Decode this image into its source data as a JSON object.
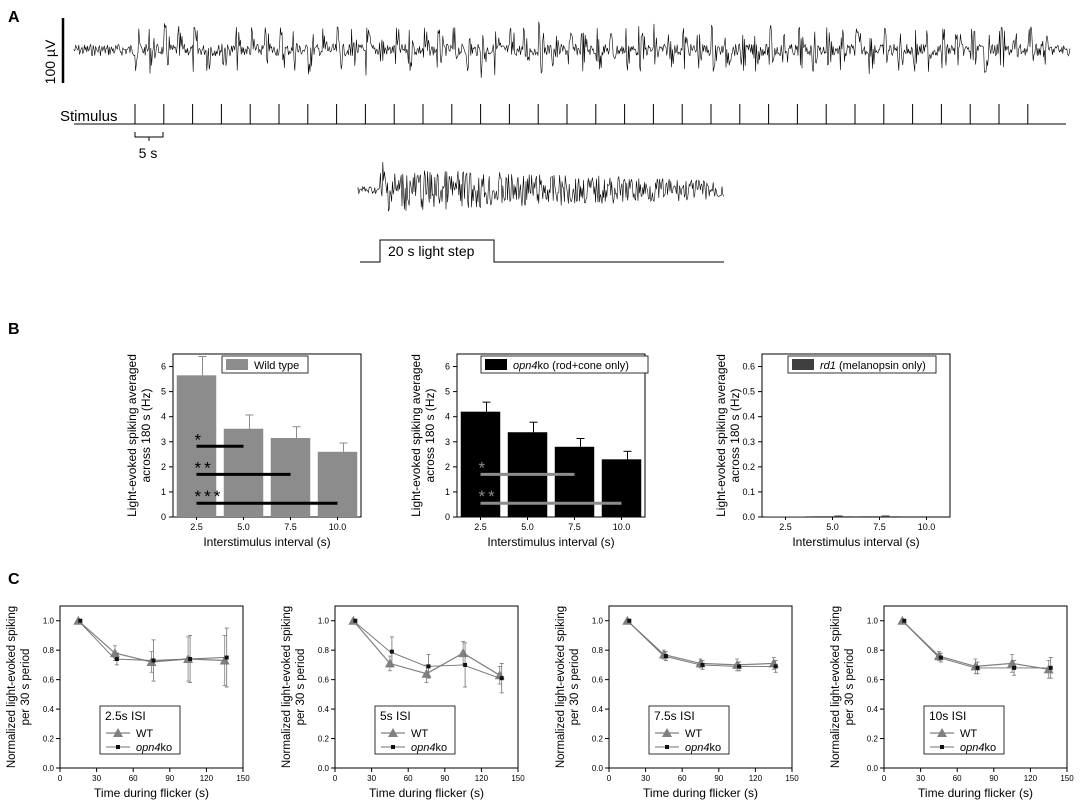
{
  "panels": {
    "a": {
      "label": "A",
      "scale_bar": "100 µV",
      "stimulus_label": "Stimulus",
      "time_scale": "5 s",
      "step_label": "20 s light step"
    },
    "b": {
      "label": "B"
    },
    "c": {
      "label": "C"
    }
  },
  "colors": {
    "wild_type": "#8c8c8c",
    "opn4ko": "#000000",
    "rd1": "#3f3f3f",
    "sig_gray": "#8c8c8c",
    "wt_line": "#808080",
    "ko_line": "#707070"
  },
  "chart_data": [
    {
      "type": "bar",
      "categories": [
        "2.5",
        "5.0",
        "7.5",
        "10.0"
      ],
      "values": [
        5.65,
        3.52,
        3.15,
        2.6
      ],
      "errors": [
        0.75,
        0.55,
        0.45,
        0.35
      ],
      "legend": "Wild type",
      "xlabel": "Interstimulus interval (s)",
      "ylabel": [
        "Light-evoked spiking averaged",
        "across 180 s (Hz)"
      ],
      "ylim": [
        0,
        6.5
      ],
      "yticks": [
        "0",
        "1",
        "2",
        "3",
        "4",
        "5",
        "6"
      ],
      "legend_position": "top-right",
      "significance": [
        {
          "label": "*",
          "from": "2.5",
          "to": "5.0",
          "y": 2.82
        },
        {
          "label": "**",
          "from": "2.5",
          "to": "7.5",
          "y": 1.7
        },
        {
          "label": "***",
          "from": "2.5",
          "to": "10.0",
          "y": 0.55
        }
      ]
    },
    {
      "type": "bar",
      "categories": [
        "2.5",
        "5.0",
        "7.5",
        "10.0"
      ],
      "values": [
        4.2,
        3.38,
        2.8,
        2.3
      ],
      "errors": [
        0.38,
        0.4,
        0.33,
        0.32
      ],
      "legend": "opn4ko (rod+cone only)",
      "legend_italic": "opn4",
      "legend_rest": "ko (rod+cone only)",
      "xlabel": "Interstimulus interval (s)",
      "ylabel": [
        "Light-evoked spiking averaged",
        "across 180 s (Hz)"
      ],
      "ylim": [
        0,
        6.5
      ],
      "yticks": [
        "0",
        "1",
        "2",
        "3",
        "4",
        "5",
        "6"
      ],
      "legend_position": "top-right",
      "significance": [
        {
          "label": "*",
          "from": "2.5",
          "to": "7.5",
          "y": 1.7
        },
        {
          "label": "**",
          "from": "2.5",
          "to": "10.0",
          "y": 0.55
        }
      ]
    },
    {
      "type": "bar",
      "categories": [
        "2.5",
        "5.0",
        "7.5",
        "10.0"
      ],
      "values": [
        0.002,
        0.003,
        0.003,
        0.0
      ],
      "errors": [
        0.0,
        0.001,
        0.001,
        0.0
      ],
      "legend": "rd1 (melanopsin only)",
      "legend_italic": "rd1",
      "legend_rest": " (melanopsin only)",
      "xlabel": "Interstimulus interval (s)",
      "ylabel": [
        "Light-evoked spiking averaged",
        "across 180 s (Hz)"
      ],
      "ylim": [
        0,
        0.65
      ],
      "yticks": [
        "0.0",
        "0.1",
        "0.2",
        "0.3",
        "0.4",
        "0.5",
        "0.6"
      ],
      "legend_position": "top-right"
    },
    {
      "type": "line",
      "title": "2.5s ISI",
      "x": [
        15,
        45,
        75,
        105,
        135
      ],
      "series": [
        {
          "name": "WT",
          "values": [
            1.0,
            0.78,
            0.72,
            0.74,
            0.73
          ],
          "errors": [
            0,
            0.05,
            0.07,
            0.15,
            0.17
          ]
        },
        {
          "name": "opn4ko",
          "values": [
            1.0,
            0.74,
            0.73,
            0.74,
            0.75
          ],
          "errors": [
            0,
            0.04,
            0.14,
            0.16,
            0.2
          ]
        }
      ],
      "xlabel": "Time during flicker (s)",
      "ylabel": [
        "Normalized light-evoked spiking",
        "per 30 s period"
      ],
      "xlim": [
        0,
        150
      ],
      "ylim": [
        0,
        1.1
      ],
      "xticks": [
        "0",
        "30",
        "60",
        "90",
        "120",
        "150"
      ],
      "yticks": [
        "0.0",
        "0.2",
        "0.4",
        "0.6",
        "0.8",
        "1.0"
      ],
      "legend_position": "bottom-left"
    },
    {
      "type": "line",
      "title": "5s ISI",
      "x": [
        15,
        45,
        75,
        105,
        135
      ],
      "series": [
        {
          "name": "WT",
          "values": [
            1.0,
            0.71,
            0.64,
            0.78,
            0.63
          ],
          "errors": [
            0,
            0.05,
            0.06,
            0.08,
            0.06
          ]
        },
        {
          "name": "opn4ko",
          "values": [
            1.0,
            0.79,
            0.69,
            0.7,
            0.61
          ],
          "errors": [
            0,
            0.1,
            0.08,
            0.15,
            0.1
          ]
        }
      ],
      "xlabel": "Time during flicker (s)",
      "ylabel": [
        "Normalized light-evoked spiking",
        "per 30 s period"
      ],
      "xlim": [
        0,
        150
      ],
      "ylim": [
        0,
        1.1
      ],
      "xticks": [
        "0",
        "30",
        "60",
        "90",
        "120",
        "150"
      ],
      "yticks": [
        "0.0",
        "0.2",
        "0.4",
        "0.6",
        "0.8",
        "1.0"
      ],
      "legend_position": "bottom-left"
    },
    {
      "type": "line",
      "title": "7.5s ISI",
      "x": [
        15,
        45,
        75,
        105,
        135
      ],
      "series": [
        {
          "name": "WT",
          "values": [
            1.0,
            0.77,
            0.71,
            0.7,
            0.71
          ],
          "errors": [
            0,
            0.03,
            0.03,
            0.04,
            0.04
          ]
        },
        {
          "name": "opn4ko",
          "values": [
            1.0,
            0.76,
            0.7,
            0.69,
            0.69
          ],
          "errors": [
            0,
            0.03,
            0.03,
            0.03,
            0.04
          ]
        }
      ],
      "xlabel": "Time during flicker (s)",
      "ylabel": [
        "Normalized light-evoked spiking",
        "per 30 s period"
      ],
      "xlim": [
        0,
        150
      ],
      "ylim": [
        0,
        1.1
      ],
      "xticks": [
        "0",
        "30",
        "60",
        "90",
        "120",
        "150"
      ],
      "yticks": [
        "0.0",
        "0.2",
        "0.4",
        "0.6",
        "0.8",
        "1.0"
      ],
      "legend_position": "bottom-left"
    },
    {
      "type": "line",
      "title": "10s ISI",
      "x": [
        15,
        45,
        75,
        105,
        135
      ],
      "series": [
        {
          "name": "WT",
          "values": [
            1.0,
            0.76,
            0.69,
            0.71,
            0.67
          ],
          "errors": [
            0,
            0.03,
            0.05,
            0.06,
            0.06
          ]
        },
        {
          "name": "opn4ko",
          "values": [
            1.0,
            0.75,
            0.68,
            0.68,
            0.68
          ],
          "errors": [
            0,
            0.03,
            0.04,
            0.05,
            0.07
          ]
        }
      ],
      "xlabel": "Time during flicker (s)",
      "ylabel": [
        "Normalized light-evoked spiking",
        "per 30 s period"
      ],
      "xlim": [
        0,
        150
      ],
      "ylim": [
        0,
        1.1
      ],
      "xticks": [
        "0",
        "30",
        "60",
        "90",
        "120",
        "150"
      ],
      "yticks": [
        "0.0",
        "0.2",
        "0.4",
        "0.6",
        "0.8",
        "1.0"
      ],
      "legend_position": "bottom-left"
    }
  ]
}
